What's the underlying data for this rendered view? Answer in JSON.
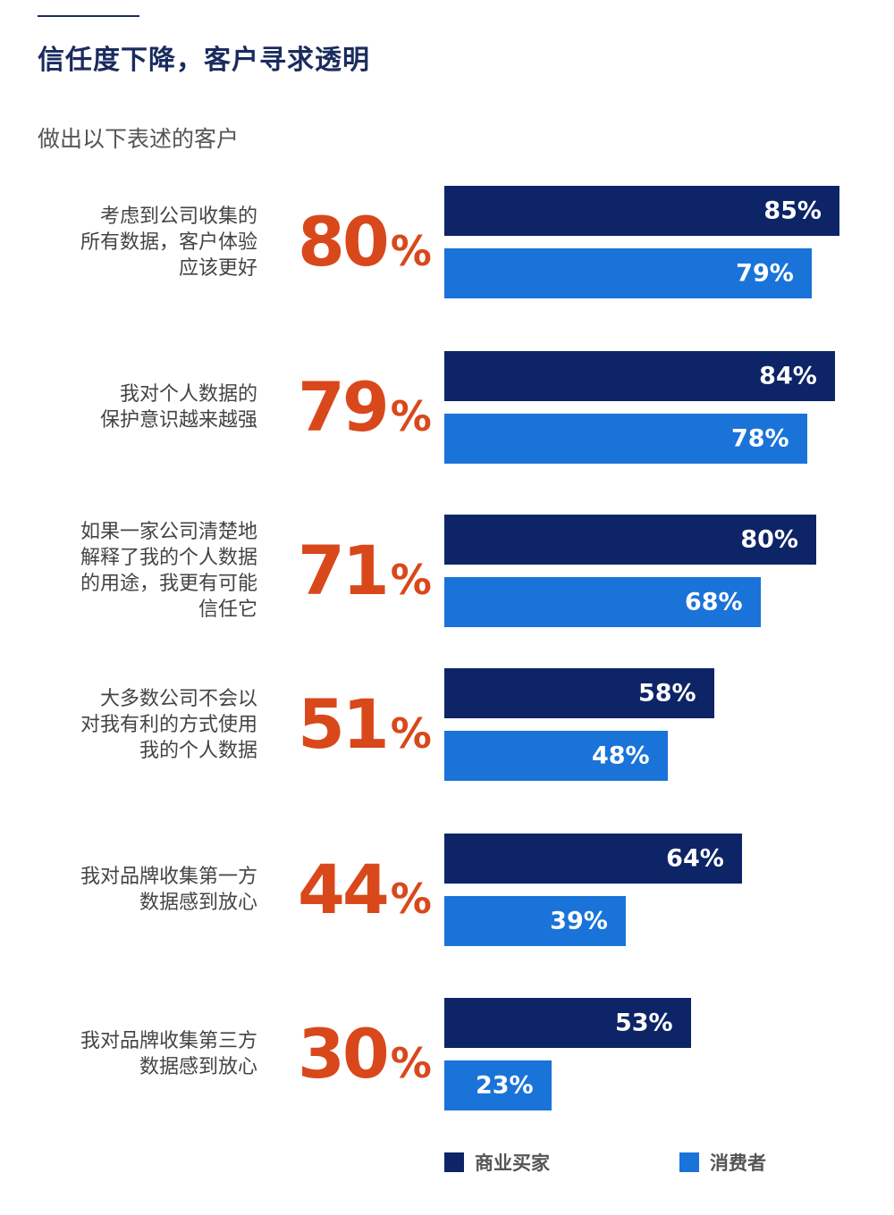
{
  "title": "信任度下降，客户寻求透明",
  "subtitle": "做出以下表述的客户",
  "colors": {
    "buyer": "#0d2467",
    "consumer": "#1a73d9",
    "headline": "#d9481b"
  },
  "legend": {
    "buyer": "商业买家",
    "consumer": "消费者"
  },
  "chart_data": {
    "type": "bar",
    "orientation": "horizontal",
    "title": "信任度下降，客户寻求透明",
    "subtitle": "做出以下表述的客户",
    "xlim": [
      0,
      100
    ],
    "categories": [
      "考虑到公司收集的所有数据，客户体验应该更好",
      "我对个人数据的保护意识越来越强",
      "如果一家公司清楚地解释了我的个人数据的用途，我更有可能信任它",
      "大多数公司不会以对我有利的方式使用我的个人数据",
      "我对品牌收集第一方数据感到放心",
      "我对品牌收集第三方数据感到放心"
    ],
    "headline_values": [
      80,
      79,
      71,
      51,
      44,
      30
    ],
    "series": [
      {
        "name": "商业买家",
        "values": [
          85,
          84,
          80,
          58,
          64,
          53
        ]
      },
      {
        "name": "消费者",
        "values": [
          79,
          78,
          68,
          48,
          39,
          23
        ]
      }
    ],
    "legend_position": "bottom"
  },
  "rows": [
    {
      "label_lines": [
        "考虑到公司收集的",
        "所有数据，客户体验",
        "应该更好"
      ],
      "headline": "80",
      "buyer": "85%",
      "consumer": "79%"
    },
    {
      "label_lines": [
        "我对个人数据的",
        "保护意识越来越强"
      ],
      "headline": "79",
      "buyer": "84%",
      "consumer": "78%"
    },
    {
      "label_lines": [
        "如果一家公司清楚地",
        "解释了我的个人数据",
        "的用途，我更有可能",
        "信任它"
      ],
      "headline": "71",
      "buyer": "80%",
      "consumer": "68%"
    },
    {
      "label_lines": [
        "大多数公司不会以",
        "对我有利的方式使用",
        "我的个人数据"
      ],
      "headline": "51",
      "buyer": "58%",
      "consumer": "48%"
    },
    {
      "label_lines": [
        "我对品牌收集第一方",
        "数据感到放心"
      ],
      "headline": "44",
      "buyer": "64%",
      "consumer": "39%"
    },
    {
      "label_lines": [
        "我对品牌收集第三方",
        "数据感到放心"
      ],
      "headline": "30",
      "buyer": "53%",
      "consumer": "23%"
    }
  ],
  "percent_sign": "%"
}
